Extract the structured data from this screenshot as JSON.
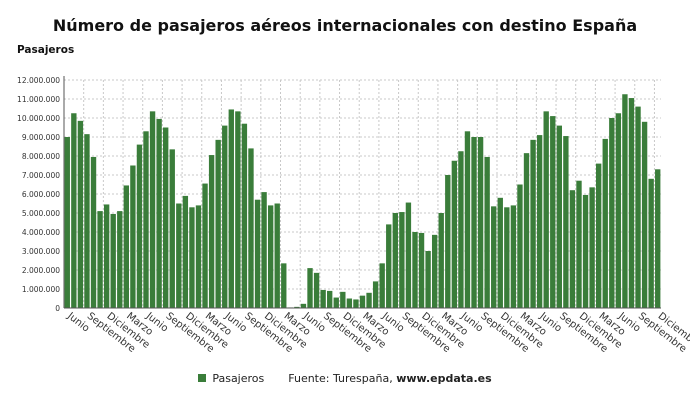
{
  "colors": {
    "bar": "#3a7d3a",
    "grid": "#c8c8c8",
    "axis": "#555555"
  },
  "chart_data": {
    "type": "bar",
    "title": "Número de pasajeros aéreos internacionales con destino España",
    "ylabel": "Pasajeros",
    "ylim": [
      0,
      12000000
    ],
    "y_ticks": [
      "0",
      "1.000.000",
      "2.000.000",
      "3.000.000",
      "4.000.000",
      "5.000.000",
      "6.000.000",
      "7.000.000",
      "8.000.000",
      "9.000.000",
      "10.000.000",
      "11.000.000",
      "12.000.000"
    ],
    "x_tick_labels": [
      "Junio",
      "Septiembre",
      "Diciembre",
      "Marzo",
      "Junio",
      "Septiembre",
      "Diciembre",
      "Marzo",
      "Junio",
      "Septiembre",
      "Diciembre",
      "Marzo",
      "Junio",
      "Septiembre",
      "Diciembre",
      "Marzo",
      "Junio",
      "Septiembre",
      "Diciembre",
      "Marzo",
      "Junio",
      "Septiembre",
      "Diciembre",
      "Marzo",
      "Junio",
      "Septiembre",
      "Diciembre",
      "Marzo",
      "Junio",
      "Septiembre",
      "Diciembre"
    ],
    "grid": true,
    "legend_position": "bottom",
    "series": [
      {
        "name": "Pasajeros",
        "values": [
          9000000,
          10250000,
          9850000,
          9150000,
          7950000,
          5100000,
          5450000,
          4950000,
          5100000,
          6450000,
          7500000,
          8600000,
          9300000,
          10350000,
          9950000,
          9500000,
          8350000,
          5500000,
          5900000,
          5300000,
          5400000,
          6550000,
          8050000,
          8850000,
          9600000,
          10450000,
          10350000,
          9700000,
          8400000,
          5700000,
          6100000,
          5400000,
          5500000,
          2350000,
          30000,
          60000,
          220000,
          2100000,
          1850000,
          950000,
          900000,
          550000,
          850000,
          500000,
          450000,
          650000,
          800000,
          1400000,
          2350000,
          4400000,
          5000000,
          5050000,
          5550000,
          4000000,
          3950000,
          3000000,
          3850000,
          5000000,
          7000000,
          7750000,
          8250000,
          9300000,
          9000000,
          9000000,
          7950000,
          5350000,
          5800000,
          5300000,
          5400000,
          6500000,
          8150000,
          8850000,
          9100000,
          10350000,
          10100000,
          9600000,
          9050000,
          6200000,
          6700000,
          5950000,
          6350000,
          7600000,
          8900000,
          10000000,
          10250000,
          11250000,
          11050000,
          10600000,
          9800000,
          6800000,
          7300000
        ]
      }
    ]
  },
  "legend": {
    "series_label": "Pasajeros",
    "source_text": "Fuente: Turespaña, ",
    "source_site": "www.epdata.es"
  }
}
